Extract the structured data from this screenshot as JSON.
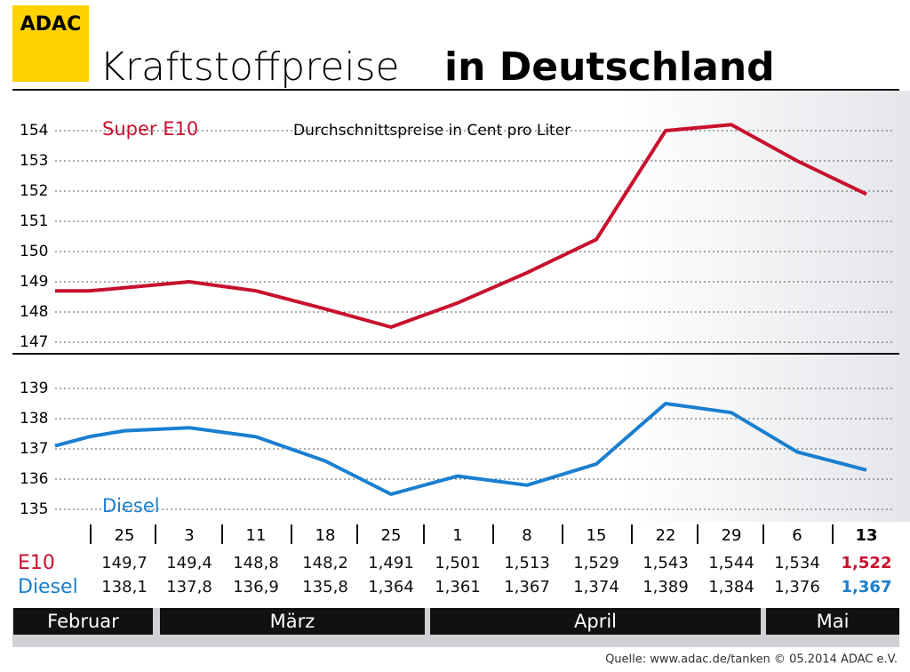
{
  "logo": "ADAC",
  "chart_data": {
    "type": "line",
    "title": "Kraftstoffpreise",
    "title_bold": "in Deutschland",
    "subtitle": "Durchschnittspreise in Cent pro Liter",
    "categories": [
      null,
      null,
      "25",
      "3",
      "11",
      "18",
      "25",
      "1",
      "8",
      "15",
      "22",
      "29",
      "6",
      "13"
    ],
    "series": [
      {
        "name": "Super E10",
        "color": "#c8102e",
        "values": [
          148.7,
          148.7,
          148.8,
          149.0,
          148.7,
          148.1,
          147.5,
          148.3,
          149.3,
          150.4,
          154.0,
          154.2,
          153.0,
          151.9
        ]
      },
      {
        "name": "Diesel",
        "color": "#1a7fd0",
        "axis": "y2",
        "values": [
          137.1,
          137.4,
          137.6,
          137.7,
          137.4,
          136.6,
          135.5,
          136.1,
          135.8,
          136.5,
          138.5,
          138.2,
          136.9,
          136.3
        ]
      }
    ],
    "ylim": [
      147,
      154
    ],
    "yticks": [
      147,
      148,
      149,
      150,
      151,
      152,
      153,
      154
    ],
    "y2lim": [
      135,
      139
    ],
    "y2ticks": [
      135,
      136,
      137,
      138,
      139
    ],
    "grid": true
  },
  "table": {
    "row_labels": [
      "E10",
      "Diesel"
    ],
    "rows": [
      [
        "149,7",
        "149,4",
        "148,8",
        "148,2",
        "1,491",
        "1,501",
        "1,513",
        "1,529",
        "1,543",
        "1,544",
        "1,534",
        "1,522"
      ],
      [
        "138,1",
        "137,8",
        "136,9",
        "135,8",
        "1,364",
        "1,361",
        "1,367",
        "1,374",
        "1,389",
        "1,384",
        "1,376",
        "1,367"
      ]
    ]
  },
  "months": [
    "Februar",
    "März",
    "April",
    "Mai"
  ],
  "source": "Quelle: www.adac.de/tanken  © 05.2014  ADAC e.V."
}
